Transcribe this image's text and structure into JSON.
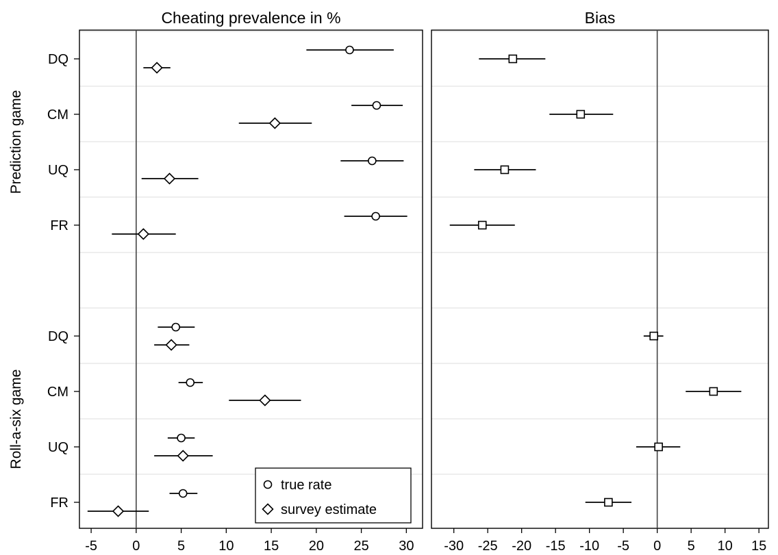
{
  "chart_data": [
    {
      "type": "scatter",
      "title": "Cheating prevalence in %",
      "xlim": [
        -6.3,
        31.8
      ],
      "xticks": [
        -5,
        0,
        5,
        10,
        15,
        20,
        25,
        30
      ],
      "reference_line_x": 0,
      "groups": [
        {
          "name": "Prediction game",
          "categories": [
            "DQ",
            "CM",
            "UQ",
            "FR"
          ]
        },
        {
          "name": "Roll-a-six game",
          "categories": [
            "DQ",
            "CM",
            "UQ",
            "FR"
          ]
        }
      ],
      "legend": {
        "position": "bottom-right",
        "entries": [
          {
            "label": "true rate",
            "marker": "circle"
          },
          {
            "label": "survey estimate",
            "marker": "diamond"
          }
        ]
      },
      "series": [
        {
          "name": "true rate",
          "marker": "circle",
          "points": [
            {
              "group": "Prediction game",
              "category": "DQ",
              "value": 23.7,
              "ci": [
                18.9,
                28.6
              ]
            },
            {
              "group": "Prediction game",
              "category": "CM",
              "value": 26.7,
              "ci": [
                23.9,
                29.6
              ]
            },
            {
              "group": "Prediction game",
              "category": "UQ",
              "value": 26.2,
              "ci": [
                22.7,
                29.7
              ]
            },
            {
              "group": "Prediction game",
              "category": "FR",
              "value": 26.6,
              "ci": [
                23.1,
                30.1
              ]
            },
            {
              "group": "Roll-a-six game",
              "category": "DQ",
              "value": 4.4,
              "ci": [
                2.4,
                6.5
              ]
            },
            {
              "group": "Roll-a-six game",
              "category": "CM",
              "value": 6.0,
              "ci": [
                4.7,
                7.4
              ]
            },
            {
              "group": "Roll-a-six game",
              "category": "UQ",
              "value": 5.0,
              "ci": [
                3.5,
                6.5
              ]
            },
            {
              "group": "Roll-a-six game",
              "category": "FR",
              "value": 5.2,
              "ci": [
                3.7,
                6.8
              ]
            }
          ]
        },
        {
          "name": "survey estimate",
          "marker": "diamond",
          "points": [
            {
              "group": "Prediction game",
              "category": "DQ",
              "value": 2.3,
              "ci": [
                0.8,
                3.8
              ]
            },
            {
              "group": "Prediction game",
              "category": "CM",
              "value": 15.4,
              "ci": [
                11.4,
                19.5
              ]
            },
            {
              "group": "Prediction game",
              "category": "UQ",
              "value": 3.7,
              "ci": [
                0.6,
                6.9
              ]
            },
            {
              "group": "Prediction game",
              "category": "FR",
              "value": 0.8,
              "ci": [
                -2.7,
                4.4
              ]
            },
            {
              "group": "Roll-a-six game",
              "category": "DQ",
              "value": 3.9,
              "ci": [
                2.0,
                5.9
              ]
            },
            {
              "group": "Roll-a-six game",
              "category": "CM",
              "value": 14.3,
              "ci": [
                10.3,
                18.3
              ]
            },
            {
              "group": "Roll-a-six game",
              "category": "UQ",
              "value": 5.2,
              "ci": [
                2.0,
                8.5
              ]
            },
            {
              "group": "Roll-a-six game",
              "category": "FR",
              "value": -2.0,
              "ci": [
                -5.4,
                1.4
              ]
            }
          ]
        }
      ]
    },
    {
      "type": "scatter",
      "title": "Bias",
      "xlim": [
        -33.3,
        16.4
      ],
      "xticks": [
        -30,
        -25,
        -20,
        -15,
        -10,
        -5,
        0,
        5,
        10,
        15
      ],
      "reference_line_x": 0,
      "series": [
        {
          "name": "bias",
          "marker": "square",
          "points": [
            {
              "group": "Prediction game",
              "category": "DQ",
              "value": -21.3,
              "ci": [
                -26.3,
                -16.5
              ]
            },
            {
              "group": "Prediction game",
              "category": "CM",
              "value": -11.3,
              "ci": [
                -15.9,
                -6.5
              ]
            },
            {
              "group": "Prediction game",
              "category": "UQ",
              "value": -22.5,
              "ci": [
                -27.0,
                -17.9
              ]
            },
            {
              "group": "Prediction game",
              "category": "FR",
              "value": -25.8,
              "ci": [
                -30.6,
                -21.0
              ]
            },
            {
              "group": "Roll-a-six game",
              "category": "DQ",
              "value": -0.5,
              "ci": [
                -2.0,
                0.9
              ]
            },
            {
              "group": "Roll-a-six game",
              "category": "CM",
              "value": 8.3,
              "ci": [
                4.2,
                12.4
              ]
            },
            {
              "group": "Roll-a-six game",
              "category": "UQ",
              "value": 0.2,
              "ci": [
                -3.1,
                3.4
              ]
            },
            {
              "group": "Roll-a-six game",
              "category": "FR",
              "value": -7.2,
              "ci": [
                -10.6,
                -3.8
              ]
            }
          ]
        }
      ]
    }
  ]
}
